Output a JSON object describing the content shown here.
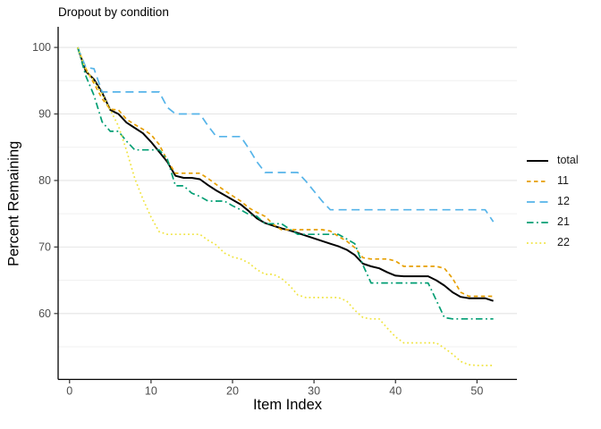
{
  "chart_data": {
    "type": "line",
    "title": "Dropout by condition",
    "xlabel": "Item Index",
    "ylabel": "Percent Remaining",
    "xlim": [
      -1.4,
      54.9
    ],
    "ylim": [
      50.1,
      103.1
    ],
    "x_ticks": [
      0,
      10,
      20,
      30,
      40,
      50
    ],
    "y_ticks": [
      100,
      90,
      80,
      70,
      60
    ],
    "y_minor_gridlines": [
      95,
      85,
      75,
      65,
      55
    ],
    "grid": "horizontal major and minor gridlines only, light gray",
    "legend_position": "right",
    "x": [
      1,
      2,
      3,
      4,
      5,
      6,
      7,
      8,
      9,
      10,
      11,
      12,
      13,
      14,
      15,
      16,
      17,
      18,
      19,
      20,
      21,
      22,
      23,
      24,
      25,
      26,
      27,
      28,
      29,
      30,
      31,
      32,
      33,
      34,
      35,
      36,
      37,
      38,
      39,
      40,
      41,
      42,
      43,
      44,
      45,
      46,
      47,
      48,
      49,
      50,
      51,
      52
    ],
    "series": [
      {
        "name": "total",
        "color": "#000000",
        "linetype": "solid",
        "values": [
          100,
          96.4,
          95.2,
          93.2,
          90.6,
          90.0,
          88.7,
          87.9,
          87.1,
          85.8,
          84.3,
          82.8,
          80.7,
          80.4,
          80.4,
          80.2,
          79.3,
          78.5,
          77.8,
          77.1,
          76.4,
          75.4,
          74.3,
          73.6,
          73.2,
          72.8,
          72.5,
          72.1,
          71.7,
          71.3,
          70.9,
          70.5,
          70.1,
          69.6,
          68.8,
          67.5,
          67.1,
          66.8,
          66.2,
          65.7,
          65.6,
          65.6,
          65.6,
          65.6,
          65.0,
          64.2,
          63.2,
          62.5,
          62.3,
          62.3,
          62.3,
          61.9
        ]
      },
      {
        "name": "11",
        "color": "#E69F00",
        "linetype": "dashed",
        "values": [
          100,
          96.8,
          94.6,
          92.3,
          90.7,
          90.6,
          89.2,
          88.4,
          87.7,
          86.9,
          85.4,
          83.0,
          81.1,
          81.1,
          81.1,
          81.1,
          80.3,
          79.4,
          78.5,
          77.7,
          76.9,
          75.9,
          75.2,
          74.6,
          73.4,
          72.6,
          72.6,
          72.6,
          72.6,
          72.6,
          72.6,
          72.4,
          71.6,
          70.9,
          69.9,
          68.4,
          68.2,
          68.2,
          68.2,
          67.9,
          67.1,
          67.1,
          67.1,
          67.1,
          67.1,
          66.8,
          65.3,
          63.2,
          62.6,
          62.6,
          62.6,
          62.6
        ]
      },
      {
        "name": "12",
        "color": "#56B4E9",
        "linetype": "longdash",
        "values": [
          100,
          97.0,
          96.8,
          93.3,
          93.3,
          93.3,
          93.3,
          93.3,
          93.3,
          93.3,
          93.3,
          91.0,
          90.0,
          90.0,
          90.0,
          90.0,
          88.2,
          86.6,
          86.6,
          86.6,
          86.6,
          84.8,
          82.8,
          81.2,
          81.2,
          81.2,
          81.2,
          81.2,
          79.9,
          78.4,
          76.9,
          75.6,
          75.6,
          75.6,
          75.6,
          75.6,
          75.6,
          75.6,
          75.6,
          75.6,
          75.6,
          75.6,
          75.6,
          75.6,
          75.6,
          75.6,
          75.6,
          75.6,
          75.6,
          75.6,
          75.6,
          73.8
        ]
      },
      {
        "name": "21",
        "color": "#009E73",
        "linetype": "dashdot",
        "values": [
          100,
          95.7,
          92.8,
          88.8,
          87.4,
          87.4,
          85.9,
          84.6,
          84.6,
          84.6,
          84.6,
          83.2,
          79.2,
          79.2,
          78.1,
          77.6,
          76.9,
          76.9,
          76.9,
          76.2,
          75.6,
          74.9,
          74.6,
          73.5,
          73.5,
          73.5,
          72.7,
          71.9,
          71.9,
          71.9,
          71.9,
          71.9,
          71.9,
          71.2,
          70.5,
          67.3,
          64.6,
          64.6,
          64.6,
          64.6,
          64.6,
          64.6,
          64.6,
          64.6,
          62.0,
          59.4,
          59.2,
          59.2,
          59.2,
          59.2,
          59.2,
          59.2
        ]
      },
      {
        "name": "22",
        "color": "#F0E442",
        "linetype": "dotted",
        "values": [
          100,
          96.6,
          95.0,
          93.0,
          90.6,
          88.2,
          84.5,
          80.3,
          77.2,
          74.5,
          72.3,
          71.9,
          71.9,
          71.9,
          71.9,
          71.9,
          71.0,
          70.3,
          69.1,
          68.5,
          68.2,
          67.6,
          66.6,
          65.9,
          65.9,
          65.3,
          64.2,
          62.8,
          62.4,
          62.4,
          62.4,
          62.4,
          62.4,
          61.9,
          60.5,
          59.4,
          59.2,
          59.2,
          57.8,
          56.5,
          55.6,
          55.6,
          55.6,
          55.6,
          55.6,
          54.8,
          53.9,
          52.8,
          52.3,
          52.2,
          52.2,
          52.2
        ]
      }
    ]
  },
  "style": {
    "axis_line_color": "#000000",
    "tick_label_color": "#4d4d4d",
    "major_grid_color": "#e4e4e4",
    "minor_grid_color": "#f0f0f0",
    "background": "#ffffff"
  }
}
